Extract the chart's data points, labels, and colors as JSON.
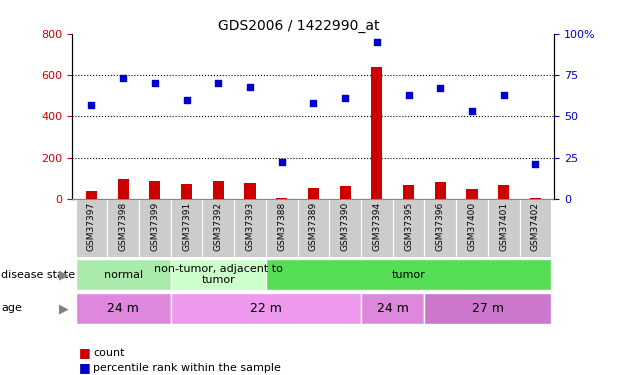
{
  "title": "GDS2006 / 1422990_at",
  "samples": [
    "GSM37397",
    "GSM37398",
    "GSM37399",
    "GSM37391",
    "GSM37392",
    "GSM37393",
    "GSM37388",
    "GSM37389",
    "GSM37390",
    "GSM37394",
    "GSM37395",
    "GSM37396",
    "GSM37400",
    "GSM37401",
    "GSM37402"
  ],
  "count_values": [
    40,
    95,
    85,
    70,
    85,
    75,
    5,
    50,
    60,
    640,
    65,
    80,
    45,
    65,
    5
  ],
  "percentile_values": [
    57,
    73,
    70,
    60,
    70,
    68,
    22,
    58,
    61,
    95,
    63,
    67,
    53,
    63,
    21
  ],
  "count_color": "#cc0000",
  "percentile_color": "#0000cc",
  "ylim_left": [
    0,
    800
  ],
  "ylim_right": [
    0,
    100
  ],
  "yticks_left": [
    0,
    200,
    400,
    600,
    800
  ],
  "yticks_right": [
    0,
    25,
    50,
    75,
    100
  ],
  "ytick_labels_right": [
    "0",
    "25",
    "50",
    "75",
    "100%"
  ],
  "disease_state_groups": [
    {
      "label": "normal",
      "start": 0,
      "end": 3,
      "color": "#aaeaaa"
    },
    {
      "label": "non-tumor, adjacent to\ntumor",
      "start": 3,
      "end": 6,
      "color": "#ccffcc"
    },
    {
      "label": "tumor",
      "start": 6,
      "end": 15,
      "color": "#55dd55"
    }
  ],
  "age_groups": [
    {
      "label": "24 m",
      "start": 0,
      "end": 3,
      "color": "#dd88dd"
    },
    {
      "label": "22 m",
      "start": 3,
      "end": 9,
      "color": "#ee99ee"
    },
    {
      "label": "24 m",
      "start": 9,
      "end": 11,
      "color": "#dd88dd"
    },
    {
      "label": "27 m",
      "start": 11,
      "end": 15,
      "color": "#cc77cc"
    }
  ],
  "legend_count_label": "count",
  "legend_percentile_label": "percentile rank within the sample",
  "row_label_disease": "disease state",
  "row_label_age": "age",
  "background_color": "#ffffff",
  "tick_box_color": "#cccccc",
  "bar_width": 0.35,
  "n_samples": 15
}
